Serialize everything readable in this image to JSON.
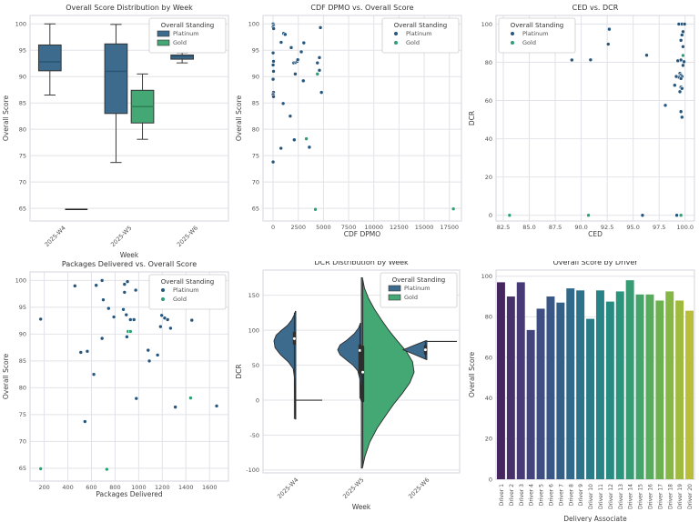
{
  "figure": {
    "background": "#ffffff",
    "grid_color": "#e2e2e8",
    "spine_color": "#d5d5dd",
    "title_color": "#333333",
    "label_color": "#3c3c3c",
    "tick_color": "#4f4f4f"
  },
  "palette": {
    "platinum_fill": "#3d6b8e",
    "gold_fill": "#43a873",
    "platinum_dot": "#26567d",
    "gold_dot": "#2aa173",
    "platinum_median": "#2a5472",
    "gold_median": "#2c7f57",
    "inner_box": "#2e2e2e",
    "whisker": "#3c3c3c"
  },
  "legend": {
    "title": "Overall Standing",
    "items": [
      "Platinum",
      "Gold"
    ]
  },
  "chart_data": [
    {
      "type": "box",
      "title": "Overall Score Distribution by Week",
      "xlabel": "Week",
      "ylabel": "Overall Score",
      "categories": [
        "2025-W4",
        "2025-W5",
        "2025-W6"
      ],
      "yticks": [
        65,
        70,
        75,
        80,
        85,
        90,
        95,
        100
      ],
      "ylim": [
        62.6,
        101.6
      ],
      "legend_pos": "tr",
      "legend_marker": "patch",
      "boxes": [
        {
          "cat": 0,
          "hue": "Platinum",
          "whislo": 86.5,
          "q1": 91.1,
          "med": 92.8,
          "q3": 96.0,
          "whishi": 100.0
        },
        {
          "cat": 0,
          "hue": "Gold",
          "whislo": 64.8,
          "q1": 64.8,
          "med": 64.8,
          "q3": 64.8,
          "whishi": 64.8
        },
        {
          "cat": 1,
          "hue": "Platinum",
          "whislo": 73.7,
          "q1": 83.0,
          "med": 91.0,
          "q3": 96.2,
          "whishi": 99.9
        },
        {
          "cat": 1,
          "hue": "Gold",
          "whislo": 78.1,
          "q1": 81.2,
          "med": 84.3,
          "q3": 87.4,
          "whishi": 90.5
        },
        {
          "cat": 2,
          "hue": "Platinum",
          "whislo": 92.6,
          "q1": 93.3,
          "med": 93.8,
          "q3": 94.1,
          "whishi": 94.5
        }
      ]
    },
    {
      "type": "scatter",
      "title": "CDF DPMO vs. Overall Score",
      "xlabel": "CDF DPMO",
      "ylabel": "Overall Score",
      "xticks": [
        0,
        2500,
        5000,
        7500,
        10000,
        12500,
        15000,
        17500
      ],
      "xtick_labels": [
        "0",
        "2500",
        "5000",
        "7500",
        "10000",
        "12500",
        "15000",
        "17500"
      ],
      "yticks": [
        65,
        70,
        75,
        80,
        85,
        90,
        95,
        100
      ],
      "xlim": [
        -1000,
        18700
      ],
      "ylim": [
        62.6,
        101.6
      ],
      "legend_pos": "tr",
      "legend_marker": "dot",
      "series": [
        {
          "name": "Platinum",
          "points": [
            [
              0,
              100
            ],
            [
              40,
              99.7
            ],
            [
              0,
              99.4
            ],
            [
              50,
              99.1
            ],
            [
              0,
              94.5
            ],
            [
              40,
              92.9
            ],
            [
              0,
              92.2
            ],
            [
              40,
              91.0
            ],
            [
              0,
              89.5
            ],
            [
              40,
              87.0
            ],
            [
              0,
              86.6
            ],
            [
              40,
              86.2
            ],
            [
              0,
              73.8
            ],
            [
              800,
              96.5
            ],
            [
              1050,
              98.2
            ],
            [
              1200,
              98.0
            ],
            [
              780,
              76.4
            ],
            [
              1000,
              84.9
            ],
            [
              1800,
              95.5
            ],
            [
              1700,
              82.5
            ],
            [
              2050,
              92.6
            ],
            [
              2250,
              92.7
            ],
            [
              2400,
              92.9
            ],
            [
              2450,
              93.2
            ],
            [
              2200,
              90.5
            ],
            [
              2100,
              78.0
            ],
            [
              2800,
              94.7
            ],
            [
              3050,
              96.4
            ],
            [
              3000,
              89.2
            ],
            [
              3600,
              76.6
            ],
            [
              4400,
              92.6
            ],
            [
              4600,
              93.6
            ],
            [
              4600,
              91.2
            ],
            [
              4700,
              99.3
            ],
            [
              4800,
              87.0
            ]
          ]
        },
        {
          "name": "Gold",
          "points": [
            [
              3300,
              78.2
            ],
            [
              4200,
              64.8
            ],
            [
              4400,
              90.5
            ],
            [
              17900,
              64.9
            ]
          ]
        }
      ]
    },
    {
      "type": "scatter",
      "title": "CED vs. DCR",
      "xlabel": "CED",
      "ylabel": "DCR",
      "xticks": [
        82.5,
        85.0,
        87.5,
        90.0,
        92.5,
        95.0,
        97.5,
        100.0
      ],
      "xtick_labels": [
        "82.5",
        "85.0",
        "87.5",
        "90.0",
        "92.5",
        "95.0",
        "97.5",
        "100.0"
      ],
      "yticks": [
        0,
        20,
        40,
        60,
        80,
        100
      ],
      "xlim": [
        81.8,
        100.9
      ],
      "ylim": [
        -3,
        104.5
      ],
      "legend_pos": "tl",
      "legend_marker": "dot",
      "series": [
        {
          "name": "Platinum",
          "points": [
            [
              89.1,
              81.2
            ],
            [
              90.9,
              81.3
            ],
            [
              92.6,
              89.5
            ],
            [
              92.7,
              97.3
            ],
            [
              96.3,
              83.7
            ],
            [
              98.1,
              57.5
            ],
            [
              95.9,
              0
            ],
            [
              99.2,
              0
            ],
            [
              99.4,
              100
            ],
            [
              99.7,
              100
            ],
            [
              99.95,
              100
            ],
            [
              99.8,
              96.0
            ],
            [
              99.7,
              94.3
            ],
            [
              99.6,
              91.5
            ],
            [
              99.8,
              88.2
            ],
            [
              99.3,
              80.8
            ],
            [
              99.6,
              81.2
            ],
            [
              99.9,
              80.3
            ],
            [
              99.8,
              78.4
            ],
            [
              99.5,
              74.2
            ],
            [
              99.6,
              73.3
            ],
            [
              99.7,
              72.6
            ],
            [
              99.4,
              72.2
            ],
            [
              99.15,
              72.6
            ],
            [
              99.6,
              71.5
            ],
            [
              99.0,
              68.0
            ],
            [
              99.6,
              67.0
            ],
            [
              99.7,
              66.3
            ],
            [
              99.5,
              64.6
            ],
            [
              99.6,
              54.2
            ],
            [
              99.7,
              51.3
            ]
          ]
        },
        {
          "name": "Gold",
          "points": [
            [
              83.1,
              0
            ],
            [
              90.7,
              0
            ],
            [
              99.6,
              0
            ],
            [
              99.8,
              83.6
            ]
          ]
        }
      ]
    },
    {
      "type": "scatter",
      "title": "Packages Delivered vs. Overall Score",
      "xlabel": "Packages Delivered",
      "ylabel": "Overall Score",
      "xticks": [
        200,
        400,
        600,
        800,
        1000,
        1200,
        1400,
        1600
      ],
      "xtick_labels": [
        "200",
        "400",
        "600",
        "800",
        "1000",
        "1200",
        "1400",
        "1600"
      ],
      "yticks": [
        65,
        70,
        75,
        80,
        85,
        90,
        95,
        100
      ],
      "xlim": [
        80,
        1760
      ],
      "ylim": [
        62.6,
        101.6
      ],
      "legend_pos": "tr",
      "legend_marker": "dot",
      "series": [
        {
          "name": "Platinum",
          "points": [
            [
              170,
              92.8
            ],
            [
              460,
              99.0
            ],
            [
              510,
              86.6
            ],
            [
              545,
              73.7
            ],
            [
              565,
              86.8
            ],
            [
              620,
              82.5
            ],
            [
              640,
              99.1
            ],
            [
              690,
              100
            ],
            [
              700,
              96.4
            ],
            [
              690,
              89.2
            ],
            [
              745,
              94.8
            ],
            [
              790,
              93.2
            ],
            [
              870,
              94.6
            ],
            [
              880,
              97.8
            ],
            [
              880,
              99.3
            ],
            [
              895,
              93.6
            ],
            [
              900,
              89.5
            ],
            [
              905,
              99.8
            ],
            [
              930,
              92.7
            ],
            [
              960,
              92.7
            ],
            [
              975,
              98.2
            ],
            [
              980,
              78.0
            ],
            [
              1080,
              87.0
            ],
            [
              1090,
              85.0
            ],
            [
              1160,
              86.1
            ],
            [
              1185,
              91.4
            ],
            [
              1195,
              93.5
            ],
            [
              1200,
              96.5
            ],
            [
              1215,
              99.3
            ],
            [
              1220,
              93.0
            ],
            [
              1245,
              92.7
            ],
            [
              1270,
              91.1
            ],
            [
              1310,
              76.4
            ],
            [
              1450,
              92.6
            ],
            [
              1520,
              95.5
            ],
            [
              1660,
              76.6
            ]
          ]
        },
        {
          "name": "Gold",
          "points": [
            [
              170,
              64.9
            ],
            [
              730,
              64.8
            ],
            [
              910,
              90.5
            ],
            [
              930,
              90.5
            ],
            [
              1440,
              78.1
            ]
          ]
        }
      ]
    },
    {
      "type": "violin",
      "title": "DCR Distribution by Week",
      "xlabel": "Week",
      "ylabel": "DCR",
      "categories": [
        "2025-W4",
        "2025-W5",
        "2025-W6"
      ],
      "yticks": [
        -100,
        -50,
        0,
        50,
        100,
        150
      ],
      "ylim": [
        -104,
        186
      ],
      "legend_pos": "tr",
      "legend_marker": "patch",
      "violins": [
        {
          "cat": 0,
          "hue": "Platinum",
          "side": -1,
          "maxpx": 24,
          "profile": [
            [
              -27,
              0.02
            ],
            [
              0,
              0.03
            ],
            [
              30,
              0.05
            ],
            [
              45,
              0.12
            ],
            [
              55,
              0.35
            ],
            [
              65,
              0.7
            ],
            [
              75,
              0.95
            ],
            [
              85,
              1.0
            ],
            [
              93,
              0.9
            ],
            [
              100,
              0.65
            ],
            [
              107,
              0.38
            ],
            [
              115,
              0.18
            ],
            [
              122,
              0.07
            ],
            [
              127,
              0.02
            ]
          ],
          "inner": {
            "q1": 79,
            "q3": 98,
            "med": 88,
            "wlo": -27,
            "whi": 125
          }
        },
        {
          "cat": 1,
          "hue": "Platinum",
          "side": -1,
          "maxpx": 26,
          "profile": [
            [
              0,
              0.02
            ],
            [
              15,
              0.03
            ],
            [
              30,
              0.06
            ],
            [
              42,
              0.15
            ],
            [
              50,
              0.35
            ],
            [
              58,
              0.65
            ],
            [
              65,
              0.9
            ],
            [
              72,
              1.0
            ],
            [
              79,
              0.9
            ],
            [
              86,
              0.6
            ],
            [
              95,
              0.3
            ],
            [
              103,
              0.12
            ],
            [
              110,
              0.04
            ]
          ],
          "inner": {
            "q1": 37,
            "q3": 80,
            "med": 71,
            "wlo": 2,
            "whi": 108
          }
        },
        {
          "cat": 1,
          "hue": "Gold",
          "side": 1,
          "maxpx": 58,
          "profile": [
            [
              -97,
              0.02
            ],
            [
              -80,
              0.07
            ],
            [
              -60,
              0.16
            ],
            [
              -40,
              0.3
            ],
            [
              -20,
              0.48
            ],
            [
              -5,
              0.62
            ],
            [
              10,
              0.78
            ],
            [
              25,
              0.92
            ],
            [
              40,
              1.0
            ],
            [
              55,
              0.97
            ],
            [
              70,
              0.85
            ],
            [
              85,
              0.68
            ],
            [
              100,
              0.52
            ],
            [
              115,
              0.38
            ],
            [
              130,
              0.25
            ],
            [
              145,
              0.14
            ],
            [
              160,
              0.06
            ],
            [
              175,
              0.02
            ]
          ],
          "inner": {
            "q1": -3,
            "q3": 78,
            "med": 40,
            "wlo": -95,
            "whi": 172
          }
        },
        {
          "cat": 2,
          "hue": "Platinum",
          "side": -1,
          "maxpx": 26,
          "profile": [
            [
              58,
              0.02
            ],
            [
              65,
              0.5
            ],
            [
              72,
              1.0
            ],
            [
              79,
              0.5
            ],
            [
              85,
              0.05
            ]
          ],
          "inner": {
            "q1": 65,
            "q3": 79,
            "med": 72,
            "wlo": 59,
            "whi": 84
          }
        }
      ],
      "flatlines": [
        {
          "cat": 0,
          "y": 0,
          "dir": 1,
          "len": 29
        },
        {
          "cat": 2,
          "y": 84,
          "dir": 1,
          "len": 33
        }
      ]
    },
    {
      "type": "bar",
      "title": "Overall Score by Driver",
      "xlabel": "Delivery Associate",
      "ylabel": "Overall Score",
      "categories": [
        "Driver 1",
        "Driver 2",
        "Driver 3",
        "Driver 4",
        "Driver 5",
        "Driver 6",
        "Driver 7",
        "Driver 8",
        "Driver 9",
        "Driver 10",
        "Driver 11",
        "Driver 12",
        "Driver 13",
        "Driver 14",
        "Driver 15",
        "Driver 16",
        "Driver 17",
        "Driver 18",
        "Driver 19",
        "Driver 20"
      ],
      "values": [
        97,
        90,
        97,
        73.5,
        84,
        90,
        87,
        94,
        93,
        79,
        93,
        87.5,
        92.5,
        98,
        91,
        91,
        88,
        92.5,
        88,
        83
      ],
      "colors": [
        "#46265e",
        "#48306b",
        "#473a76",
        "#43447d",
        "#3e4e82",
        "#395786",
        "#346087",
        "#306989",
        "#2c7289",
        "#297b88",
        "#278386",
        "#268c82",
        "#2b947c",
        "#379c73",
        "#46a369",
        "#58aa5d",
        "#6db050",
        "#86b646",
        "#a0ba3e",
        "#babd3a"
      ],
      "yticks": [
        0,
        20,
        40,
        60,
        80,
        100
      ],
      "ylim": [
        0,
        103
      ]
    }
  ]
}
